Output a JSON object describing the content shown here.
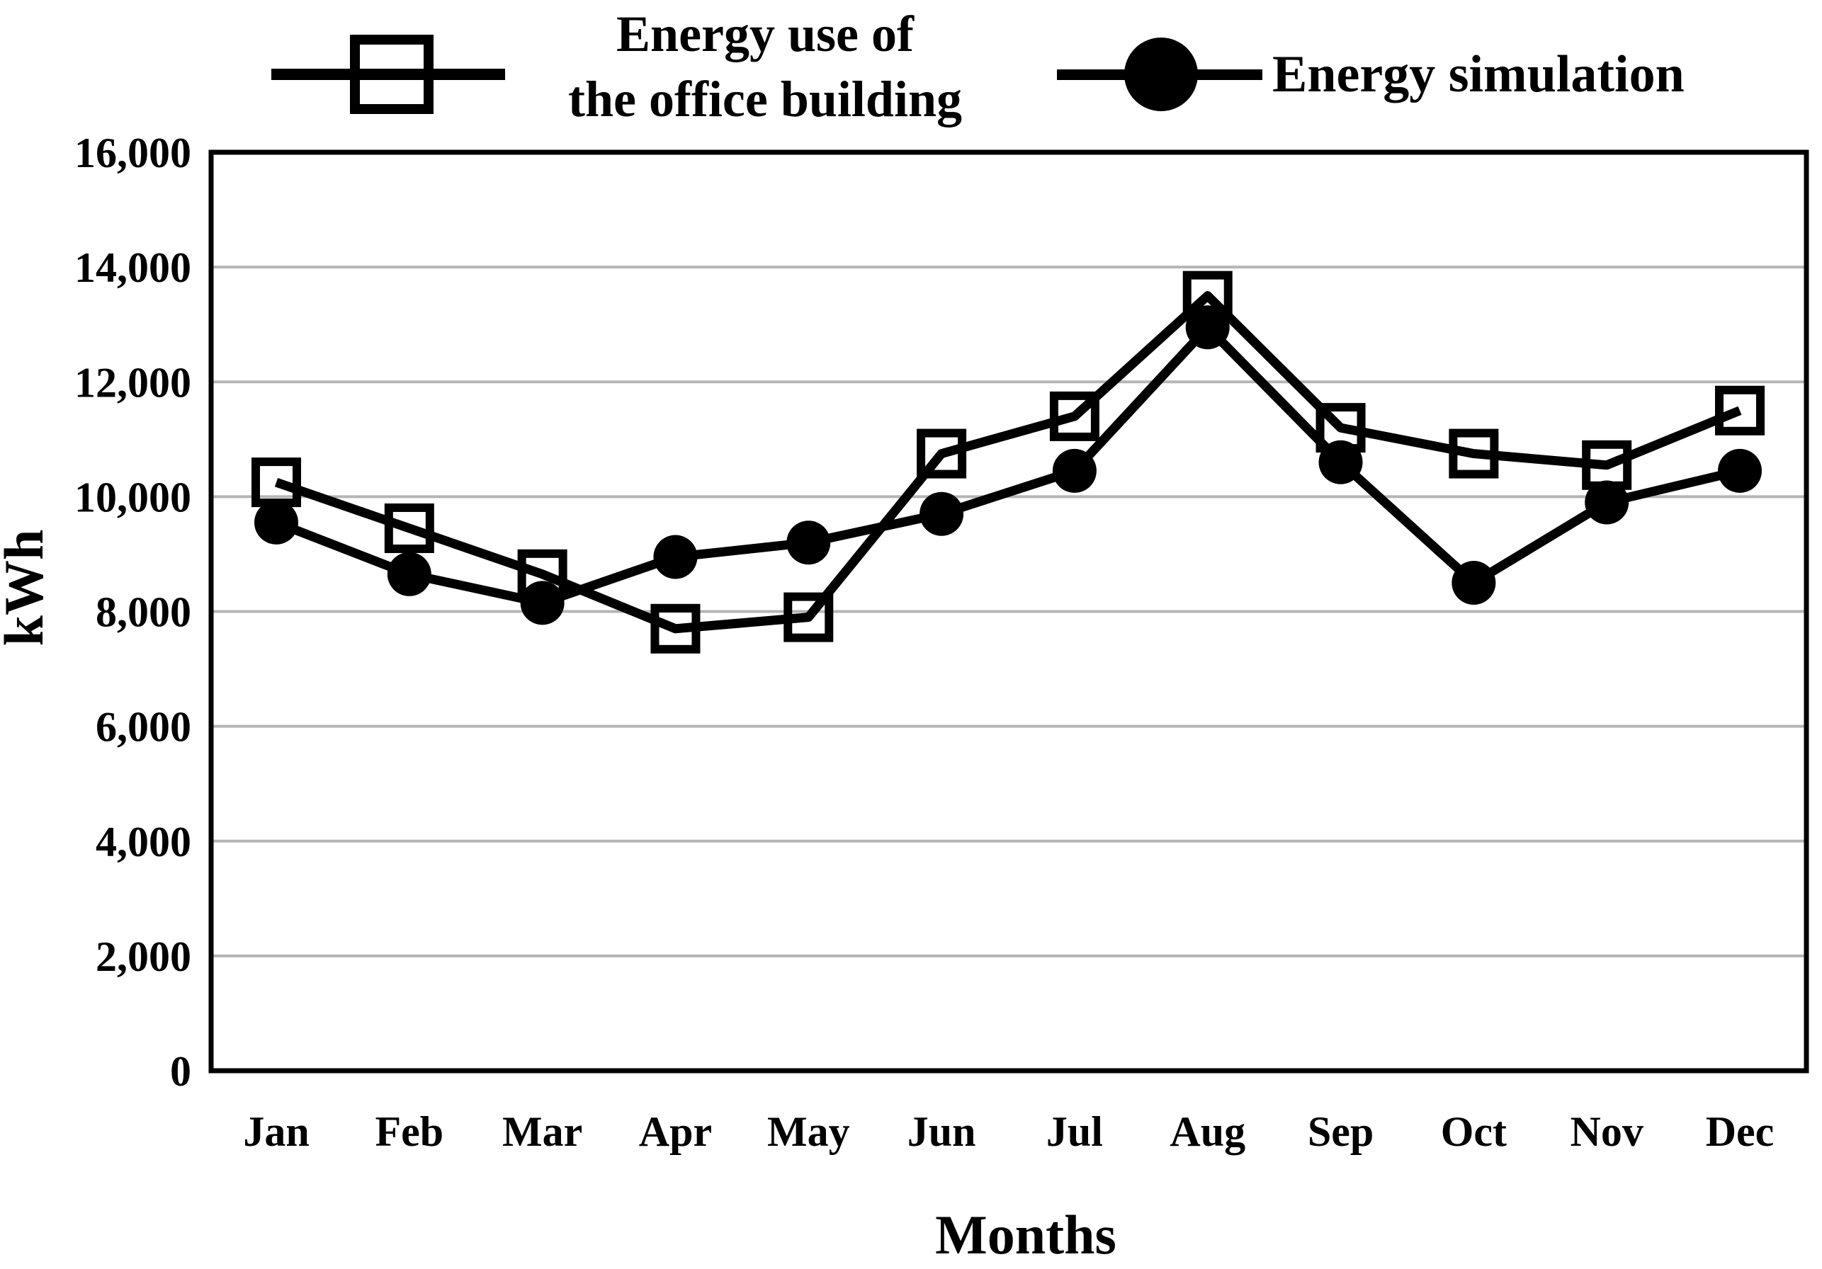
{
  "figure": {
    "background": "#ffffff"
  },
  "colors": {
    "series": "#000000",
    "gridline": "#b5b5b5",
    "plot_border": "#000000",
    "text": "#000000",
    "marker_fill_open": "none",
    "marker_fill_solid": "#000000"
  },
  "legend": {
    "items": [
      {
        "label": "Energy use of\nthe office building",
        "marker": "open-square-on-line"
      },
      {
        "label": "Energy simulation",
        "marker": "filled-circle-on-line"
      }
    ]
  },
  "axes": {
    "y_title": "kWh",
    "x_title": "Months"
  },
  "chart_data": {
    "type": "line",
    "title": "",
    "xlabel": "Months",
    "ylabel": "kWh",
    "categories": [
      "Jan",
      "Feb",
      "Mar",
      "Apr",
      "May",
      "Jun",
      "Jul",
      "Aug",
      "Sep",
      "Oct",
      "Nov",
      "Dec"
    ],
    "series": [
      {
        "name": "Energy use of the office building",
        "marker": "open-square",
        "values": [
          10250,
          9450,
          8650,
          7700,
          7900,
          10750,
          11400,
          13500,
          11200,
          10750,
          10550,
          11500
        ]
      },
      {
        "name": "Energy simulation",
        "marker": "filled-circle",
        "values": [
          9550,
          8650,
          8150,
          8950,
          9200,
          9700,
          10450,
          12950,
          10600,
          8500,
          9900,
          10450
        ]
      }
    ],
    "ylim": [
      0,
      16000
    ],
    "yticks": [
      0,
      2000,
      4000,
      6000,
      8000,
      10000,
      12000,
      14000,
      16000
    ],
    "ytick_labels": [
      "0",
      "2,000",
      "4,000",
      "6,000",
      "8,000",
      "10,000",
      "12,000",
      "14,000",
      "16,000"
    ],
    "grid": "horizontal",
    "legend_position": "top"
  }
}
